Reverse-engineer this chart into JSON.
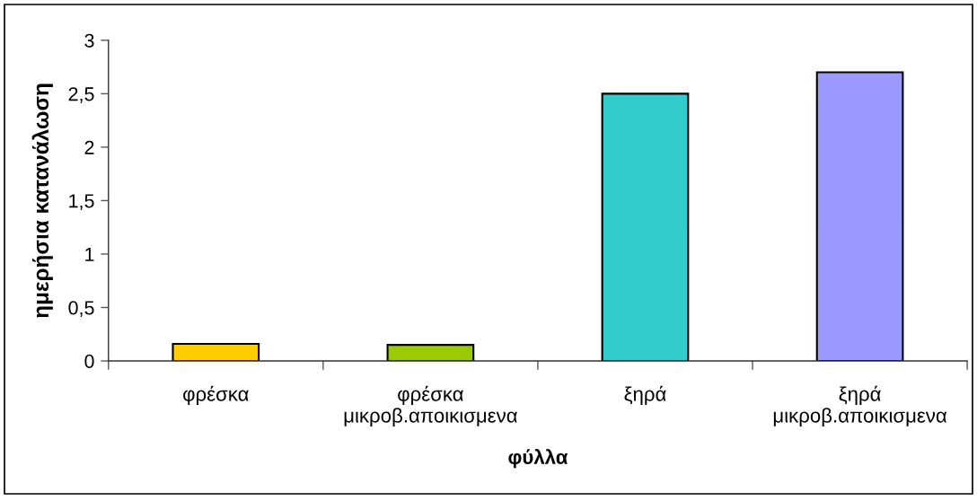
{
  "chart_data": {
    "type": "bar",
    "xlabel": "φύλλα",
    "ylabel": "ημερήσια κατανάλωση",
    "categories": [
      "φρέσκα",
      "φρέσκα\nμικροβ.αποικισμενα",
      "ξηρά",
      "ξηρά\nμικροβ.αποικισμενα"
    ],
    "values": [
      0.16,
      0.15,
      2.5,
      2.7
    ],
    "colors": [
      "#ffcc00",
      "#99cc00",
      "#33cccc",
      "#9999ff"
    ],
    "ylim": [
      0,
      3
    ],
    "yticks": [
      0,
      {
        "value": 0.5,
        "label": "0,5"
      },
      1,
      {
        "value": 1.5,
        "label": "1,5"
      },
      2,
      {
        "value": 2.5,
        "label": "2,5"
      },
      3
    ],
    "grid": false,
    "legend": false
  }
}
